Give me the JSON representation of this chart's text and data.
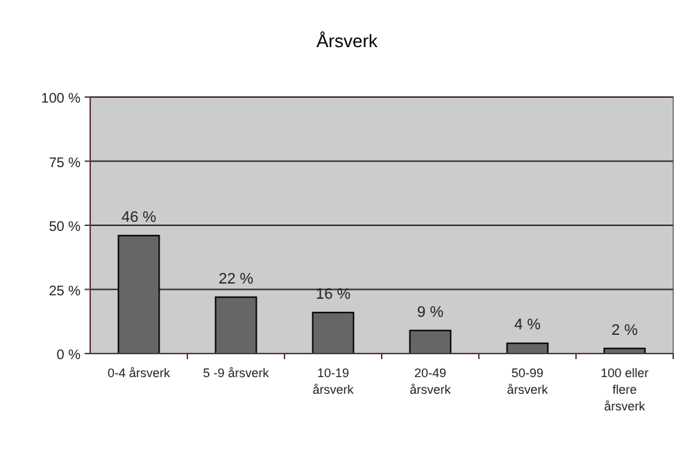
{
  "chart_data": {
    "type": "bar",
    "title": "Årsverk",
    "categories": [
      "0-4 årsverk",
      "5 -9 årsverk",
      "10-19 årsverk",
      "20-49 årsverk",
      "50-99 årsverk",
      "100 eller flere årsverk"
    ],
    "values": [
      46,
      22,
      16,
      9,
      4,
      2
    ],
    "value_labels": [
      "46 %",
      "22 %",
      "16 %",
      "9 %",
      "4 %",
      "2 %"
    ],
    "color": "#666666",
    "ylim": [
      0,
      100
    ],
    "yticks": [
      {
        "value": 0,
        "label": "0 %"
      },
      {
        "value": 25,
        "label": "25 %"
      },
      {
        "value": 50,
        "label": "50 %"
      },
      {
        "value": 75,
        "label": "75 %"
      },
      {
        "value": 100,
        "label": "100 %"
      }
    ],
    "grid": "y"
  }
}
